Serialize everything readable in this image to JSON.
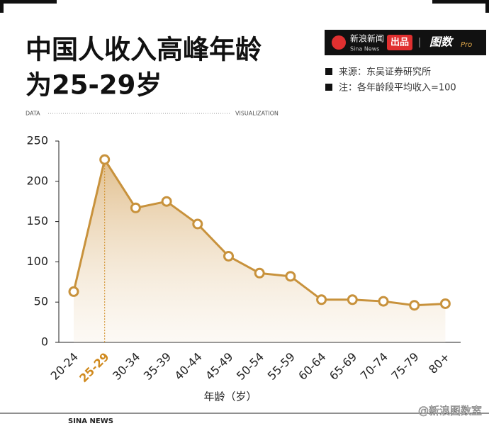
{
  "header": {
    "title_lines": [
      "中国人收入高峰年龄",
      "为25-29岁"
    ],
    "brand": "新浪新闻",
    "brand_sub": "Sina News",
    "badge": "出品",
    "logo": "图数",
    "logo_pro": "Pro",
    "notes": [
      "来源：东吴证券研究所",
      "注：各年龄段平均收入=100"
    ],
    "divider_left": "DATA",
    "divider_right": "VISUALIZATION"
  },
  "chart_data": {
    "type": "area-line",
    "x_label": "年龄（岁）",
    "categories": [
      "20-24",
      "25-29",
      "30-34",
      "35-39",
      "40-44",
      "45-49",
      "50-54",
      "55-59",
      "60-64",
      "65-69",
      "70-74",
      "75-79",
      "80+"
    ],
    "values": [
      63,
      227,
      167,
      175,
      147,
      107,
      86,
      82,
      53,
      53,
      51,
      46,
      48
    ],
    "color": "#c8923c",
    "highlight_color": "#d08a1e",
    "highlight_index": 1,
    "ylim": [
      0,
      250
    ],
    "yticks": [
      0,
      50,
      100,
      150,
      200,
      250
    ]
  },
  "footer": {
    "left": "SINA NEWS",
    "right": "@新浪图数室"
  }
}
